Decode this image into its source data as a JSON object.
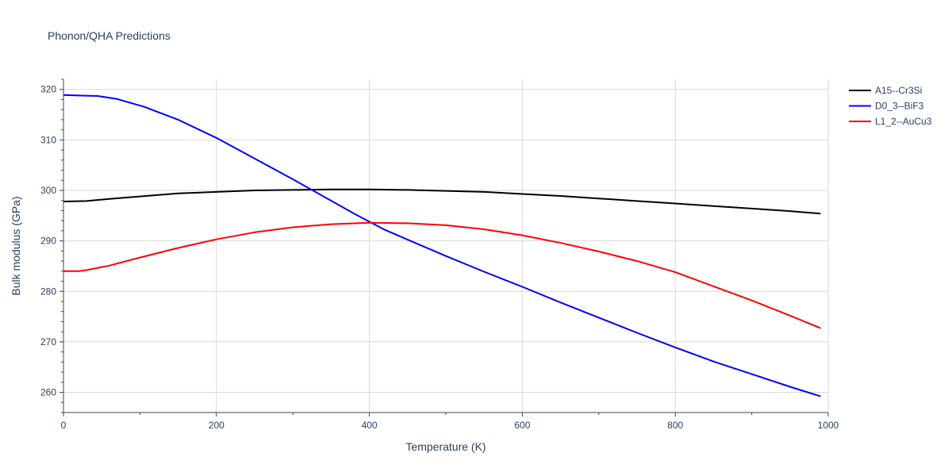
{
  "chart_data": {
    "type": "line",
    "title": "Phonon/QHA Predictions",
    "xlabel": "Temperature (K)",
    "ylabel": "Bulk modulus (GPa)",
    "xlim": [
      0,
      1000
    ],
    "ylim": [
      256,
      322
    ],
    "x_ticks": [
      0,
      200,
      400,
      600,
      800,
      1000
    ],
    "y_ticks": [
      260,
      270,
      280,
      290,
      300,
      310,
      320
    ],
    "grid": true,
    "legend_position": "top-right",
    "series": [
      {
        "name": "A15--Cr3Si",
        "color": "#000000",
        "x": [
          0,
          30,
          60,
          100,
          150,
          200,
          250,
          300,
          350,
          400,
          450,
          500,
          550,
          600,
          650,
          700,
          750,
          800,
          850,
          900,
          950,
          990
        ],
        "y": [
          297.8,
          297.9,
          298.3,
          298.8,
          299.4,
          299.7,
          300.0,
          300.1,
          300.2,
          300.2,
          300.1,
          299.9,
          299.7,
          299.3,
          298.9,
          298.4,
          297.9,
          297.4,
          296.9,
          296.4,
          295.9,
          295.4
        ]
      },
      {
        "name": "D0_3--BiF3",
        "color": "#0000ff",
        "x": [
          0,
          20,
          45,
          70,
          105,
          150,
          200,
          250,
          300,
          340,
          380,
          420,
          460,
          500,
          550,
          600,
          650,
          700,
          750,
          800,
          850,
          900,
          950,
          990
        ],
        "y": [
          318.9,
          318.8,
          318.7,
          318.1,
          316.6,
          314.0,
          310.4,
          306.3,
          302.2,
          298.8,
          295.4,
          292.2,
          289.6,
          287.0,
          283.9,
          280.9,
          277.8,
          274.8,
          271.8,
          268.9,
          266.1,
          263.6,
          261.1,
          259.2
        ]
      },
      {
        "name": "L1_2--AuCu3",
        "color": "#ff0000",
        "x": [
          0,
          20,
          30,
          60,
          100,
          150,
          200,
          250,
          300,
          350,
          400,
          450,
          500,
          550,
          600,
          650,
          700,
          750,
          800,
          850,
          900,
          950,
          990
        ],
        "y": [
          284.0,
          284.0,
          284.2,
          285.1,
          286.7,
          288.6,
          290.3,
          291.7,
          292.7,
          293.3,
          293.6,
          293.5,
          293.1,
          292.3,
          291.1,
          289.6,
          287.9,
          286.0,
          283.8,
          281.0,
          278.2,
          275.2,
          272.7
        ]
      }
    ]
  }
}
